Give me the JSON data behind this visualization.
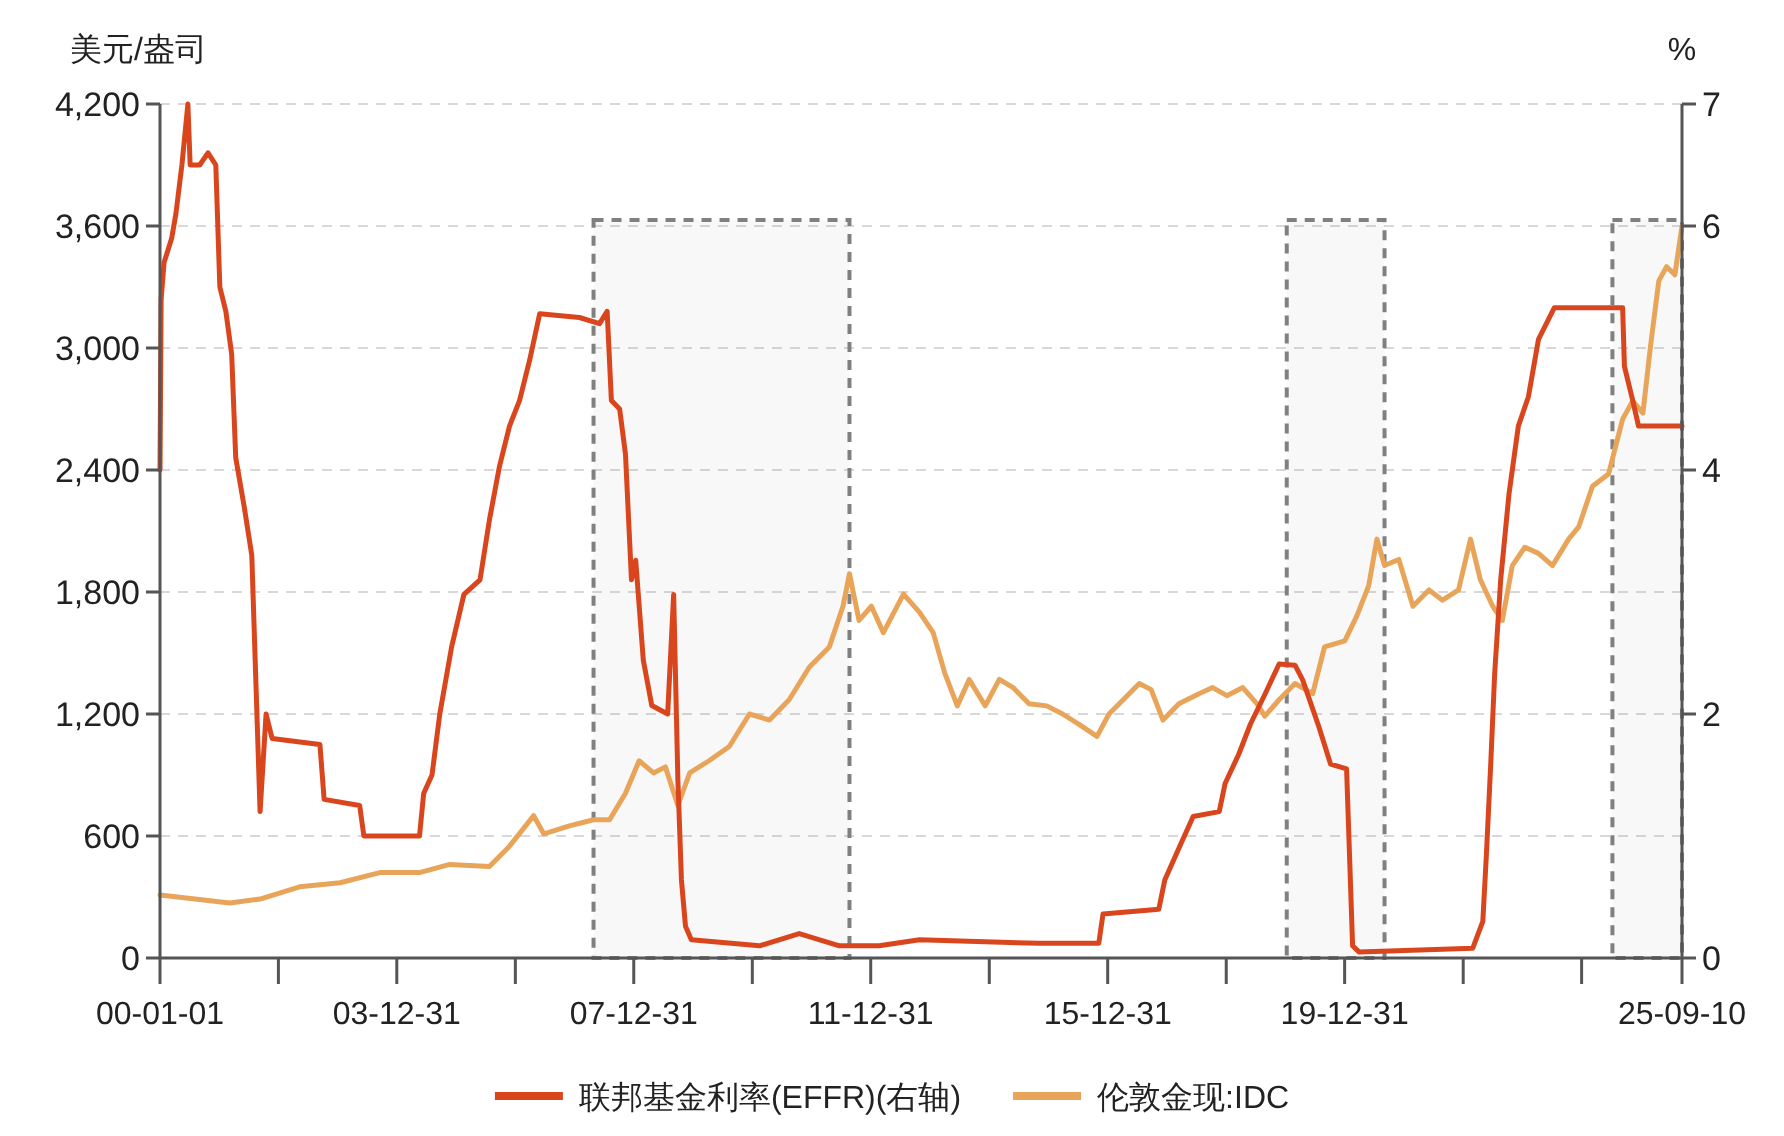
{
  "chart_data": {
    "type": "line",
    "ylabel": "美元/盎司",
    "y2label": "%",
    "legend": "bottom",
    "grid": "y",
    "line_style": "solid",
    "xlim": [
      "2000-01-01",
      "2025-09-10"
    ],
    "xticks": [
      {
        "value": "2000-01-01",
        "label": "00-01-01"
      },
      {
        "value": "2001-12-31",
        "label": null
      },
      {
        "value": "2003-12-31",
        "label": "03-12-31"
      },
      {
        "value": "2005-12-31",
        "label": null
      },
      {
        "value": "2007-12-31",
        "label": "07-12-31"
      },
      {
        "value": "2009-12-31",
        "label": null
      },
      {
        "value": "2011-12-31",
        "label": "11-12-31"
      },
      {
        "value": "2013-12-31",
        "label": null
      },
      {
        "value": "2015-12-31",
        "label": "15-12-31"
      },
      {
        "value": "2017-12-31",
        "label": null
      },
      {
        "value": "2019-12-31",
        "label": "19-12-31"
      },
      {
        "value": "2021-12-31",
        "label": null
      },
      {
        "value": "2023-12-31",
        "label": null
      },
      {
        "value": "2025-09-10",
        "label": "25-09-10"
      }
    ],
    "ylim": [
      0,
      4200
    ],
    "yticks": [
      0,
      600,
      {
        "value": 1200,
        "label": "1,200"
      },
      {
        "value": 1800,
        "label": "1,800"
      },
      {
        "value": 2400,
        "label": "2,400"
      },
      {
        "value": 3000,
        "label": "3,000"
      },
      {
        "value": 3600,
        "label": "3,600"
      },
      {
        "value": 4200,
        "label": "4,200"
      }
    ],
    "y2lim": [
      0,
      7
    ],
    "y2ticks": [
      0,
      2,
      4,
      6,
      7
    ],
    "bands": [
      {
        "axis": "x",
        "from": "2007-04-27",
        "to": "2011-08-22",
        "color": "#808080"
      },
      {
        "axis": "x",
        "from": "2019-01-08",
        "to": "2020-09-02",
        "color": "#808080"
      },
      {
        "axis": "x",
        "from": "2024-07-08",
        "to": "2025-09-10",
        "color": "#808080"
      }
    ],
    "series": [
      {
        "name": "联邦基金利率(EFFR)(右轴)",
        "color": "#d9461e",
        "axis": "y2",
        "x": [
          "2000-01-01",
          "2000-01-08",
          "2000-01-26",
          "2000-03-13",
          "2000-04-08",
          "2000-05-15",
          "2000-06-21",
          "2000-07-05",
          "2000-09-02",
          "2000-10-23",
          "2000-12-10",
          "2001-01-04",
          "2001-02-10",
          "2001-03-18",
          "2001-04-12",
          "2001-06-03",
          "2001-07-20",
          "2001-09-09",
          "2001-10-16",
          "2001-11-22",
          "2002-09-13",
          "2002-10-09",
          "2003-05-16",
          "2003-06-11",
          "2004-05-19",
          "2004-06-14",
          "2004-08-04",
          "2004-09-21",
          "2004-12-03",
          "2005-02-17",
          "2005-05-27",
          "2005-07-24",
          "2005-09-24",
          "2005-11-25",
          "2006-01-26",
          "2006-03-29",
          "2006-05-30",
          "2007-01-30",
          "2007-06-03",
          "2007-07-20",
          "2007-08-15",
          "2007-10-05",
          "2007-11-10",
          "2007-12-17",
          "2008-01-12",
          "2008-02-28",
          "2008-04-20",
          "2008-07-27",
          "2008-09-02",
          "2008-09-28",
          "2008-10-20",
          "2008-11-14",
          "2008-12-20",
          "2010-02-14",
          "2010-10-16",
          "2011-06-21",
          "2012-02-21",
          "2012-10-27",
          "2014-11-03",
          "2015-11-06",
          "2015-12-02",
          "2016-11-10",
          "2016-12-17",
          "2017-03-14",
          "2017-06-10",
          "2017-11-18",
          "2017-12-24",
          "2018-03-18",
          "2018-05-30",
          "2018-08-26",
          "2018-11-22",
          "2019-02-28",
          "2019-04-16",
          "2019-07-24",
          "2019-10-05",
          "2020-01-12",
          "2020-02-18",
          "2020-03-28",
          "2022-02-28",
          "2022-05-01",
          "2022-05-23",
          "2022-06-18",
          "2022-07-13",
          "2022-08-19",
          "2022-10-09",
          "2022-12-06",
          "2023-02-06",
          "2023-04-09",
          "2023-07-16",
          "2024-09-09",
          "2024-09-20",
          "2024-11-10",
          "2024-12-16",
          "2025-09-10"
        ],
        "values": [
          4.0,
          5.4,
          5.7,
          5.9,
          6.1,
          6.5,
          7.0,
          6.5,
          6.5,
          6.6,
          6.5,
          5.5,
          5.3,
          4.95,
          4.1,
          3.7,
          3.3,
          1.2,
          2.0,
          1.8,
          1.75,
          1.3,
          1.25,
          1.0,
          1.0,
          1.35,
          1.5,
          2.0,
          2.55,
          2.98,
          3.1,
          3.59,
          4.03,
          4.36,
          4.57,
          4.9,
          5.28,
          5.25,
          5.2,
          5.3,
          4.57,
          4.5,
          4.13,
          3.1,
          3.26,
          2.44,
          2.07,
          2.0,
          2.98,
          1.46,
          0.64,
          0.26,
          0.15,
          0.1,
          0.2,
          0.1,
          0.1,
          0.15,
          0.12,
          0.12,
          0.36,
          0.4,
          0.64,
          0.9,
          1.16,
          1.2,
          1.43,
          1.67,
          1.92,
          2.16,
          2.41,
          2.4,
          2.28,
          1.9,
          1.59,
          1.55,
          0.1,
          0.05,
          0.08,
          0.3,
          0.85,
          1.57,
          2.33,
          3.1,
          3.8,
          4.36,
          4.6,
          5.07,
          5.33,
          5.33,
          4.85,
          4.57,
          4.36,
          4.36
        ]
      },
      {
        "name": "伦敦金现:IDC",
        "color": "#e8a55a",
        "x": [
          "2000-01-01",
          "2001-03-07",
          "2001-09-09",
          "2002-05-11",
          "2003-01-15",
          "2003-09-17",
          "2004-05-19",
          "2004-11-22",
          "2005-07-24",
          "2005-11-25",
          "2006-04-23",
          "2006-06-25",
          "2006-11-29",
          "2007-04-27",
          "2007-08-04",
          "2007-11-10",
          "2008-02-02",
          "2008-05-01",
          "2008-07-13",
          "2008-09-28",
          "2008-12-10",
          "2009-04-08",
          "2009-08-11",
          "2009-12-13",
          "2010-04-16",
          "2010-08-15",
          "2010-12-17",
          "2011-04-20",
          "2011-07-13",
          "2011-08-22",
          "2011-10-20",
          "2012-01-04",
          "2012-03-18",
          "2012-07-20",
          "2012-10-27",
          "2013-01-19",
          "2013-04-01",
          "2013-06-17",
          "2013-08-29",
          "2013-12-06",
          "2014-03-03",
          "2014-05-27",
          "2014-09-02",
          "2014-12-20",
          "2015-03-28",
          "2015-07-05",
          "2015-10-26",
          "2016-01-08",
          "2016-04-05",
          "2016-07-13",
          "2016-09-24",
          "2016-12-06",
          "2017-03-14",
          "2017-07-16",
          "2017-10-08",
          "2018-01-04",
          "2018-04-12",
          "2018-07-09",
          "2018-08-26",
          "2018-11-22",
          "2019-02-28",
          "2019-06-17",
          "2019-08-29",
          "2020-01-01",
          "2020-03-14",
          "2020-05-27",
          "2020-07-17",
          "2020-09-02",
          "2020-11-29",
          "2021-02-24",
          "2021-06-03",
          "2021-08-26",
          "2021-12-02",
          "2022-02-14",
          "2022-04-16",
          "2022-07-01",
          "2022-08-29",
          "2022-10-30",
          "2023-01-15",
          "2023-04-09",
          "2023-07-05",
          "2023-10-12",
          "2023-12-13",
          "2024-03-07",
          "2024-06-14",
          "2024-09-09",
          "2024-11-10",
          "2025-01-12",
          "2025-02-28",
          "2025-04-20",
          "2025-06-07",
          "2025-07-28",
          "2025-09-10"
        ],
        "values": [
          310,
          270,
          290,
          350,
          370,
          420,
          420,
          460,
          450,
          550,
          700,
          610,
          650,
          680,
          680,
          810,
          970,
          910,
          940,
          750,
          910,
          970,
          1040,
          1200,
          1170,
          1270,
          1430,
          1530,
          1730,
          1890,
          1660,
          1730,
          1600,
          1790,
          1700,
          1600,
          1400,
          1240,
          1370,
          1240,
          1370,
          1330,
          1250,
          1240,
          1200,
          1150,
          1090,
          1200,
          1270,
          1350,
          1320,
          1170,
          1250,
          1300,
          1330,
          1290,
          1330,
          1250,
          1190,
          1270,
          1350,
          1300,
          1530,
          1560,
          1680,
          1830,
          2060,
          1930,
          1960,
          1730,
          1810,
          1760,
          1810,
          2060,
          1860,
          1730,
          1660,
          1930,
          2020,
          1990,
          1930,
          2060,
          2120,
          2320,
          2380,
          2650,
          2740,
          2680,
          3010,
          3330,
          3400,
          3360,
          3600
        ]
      }
    ]
  }
}
